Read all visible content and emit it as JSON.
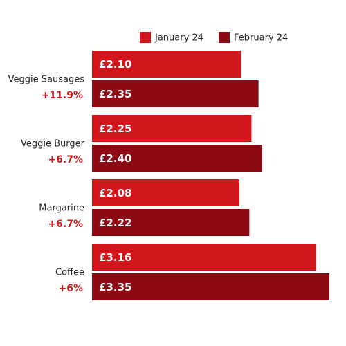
{
  "chart_data": {
    "type": "bar",
    "orientation": "horizontal",
    "categories": [
      "Veggie Sausages",
      "Veggie Burger",
      "Margarine",
      "Coffee"
    ],
    "changes": [
      "+11.9%",
      "+6.7%",
      "+6.7%",
      "+6%"
    ],
    "series": [
      {
        "name": "January 24",
        "color": "#d2171c",
        "values": [
          2.1,
          2.25,
          2.08,
          3.16
        ],
        "value_labels": [
          "£2.10",
          "£2.25",
          "£2.08",
          "£3.16"
        ]
      },
      {
        "name": "February 24",
        "color": "#8b0a14",
        "values": [
          2.35,
          2.4,
          2.22,
          3.35
        ],
        "value_labels": [
          "£2.35",
          "£2.40",
          "£2.22",
          "£3.35"
        ]
      }
    ],
    "legend": "top"
  }
}
